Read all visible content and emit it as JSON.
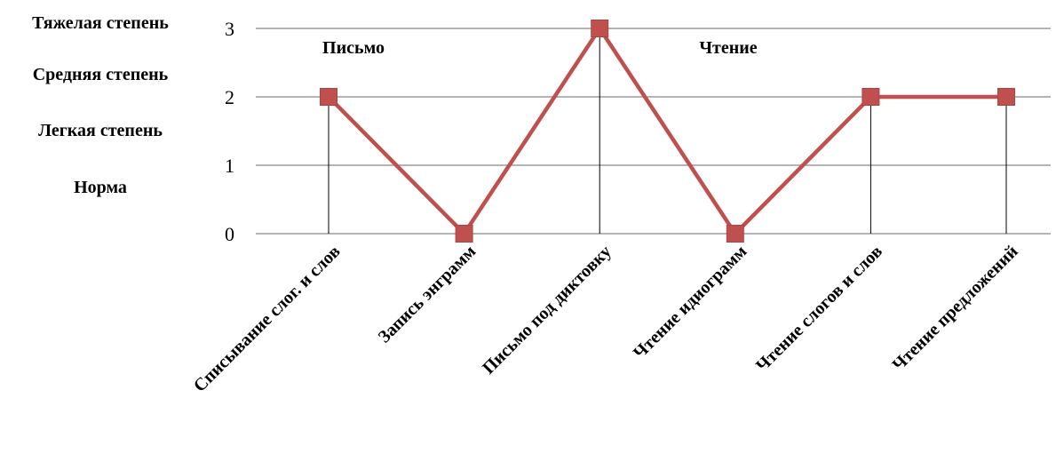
{
  "severity_scale": [
    "Тяжелая степень",
    "Средняя степень",
    "Легкая степень",
    "Норма"
  ],
  "group_labels": [
    "Письмо",
    "Чтение"
  ],
  "colors": {
    "series": "#C0504D",
    "grid": "#868686",
    "drop_lines": "#000000"
  },
  "chart_data": {
    "type": "line",
    "categories": [
      "Списывание слог. и слов",
      "Запись энграмм",
      "Письмо под диктовку",
      "Чтение идиограмм",
      "Чтение слогов и слов",
      "Чтение предложений"
    ],
    "values": [
      2,
      0,
      3,
      0,
      2,
      2
    ],
    "ylim": [
      0,
      3
    ],
    "yticks": [
      "0",
      "1",
      "2",
      "3"
    ],
    "grid": true,
    "drop_lines": true,
    "marker": "square",
    "legend": "none"
  }
}
